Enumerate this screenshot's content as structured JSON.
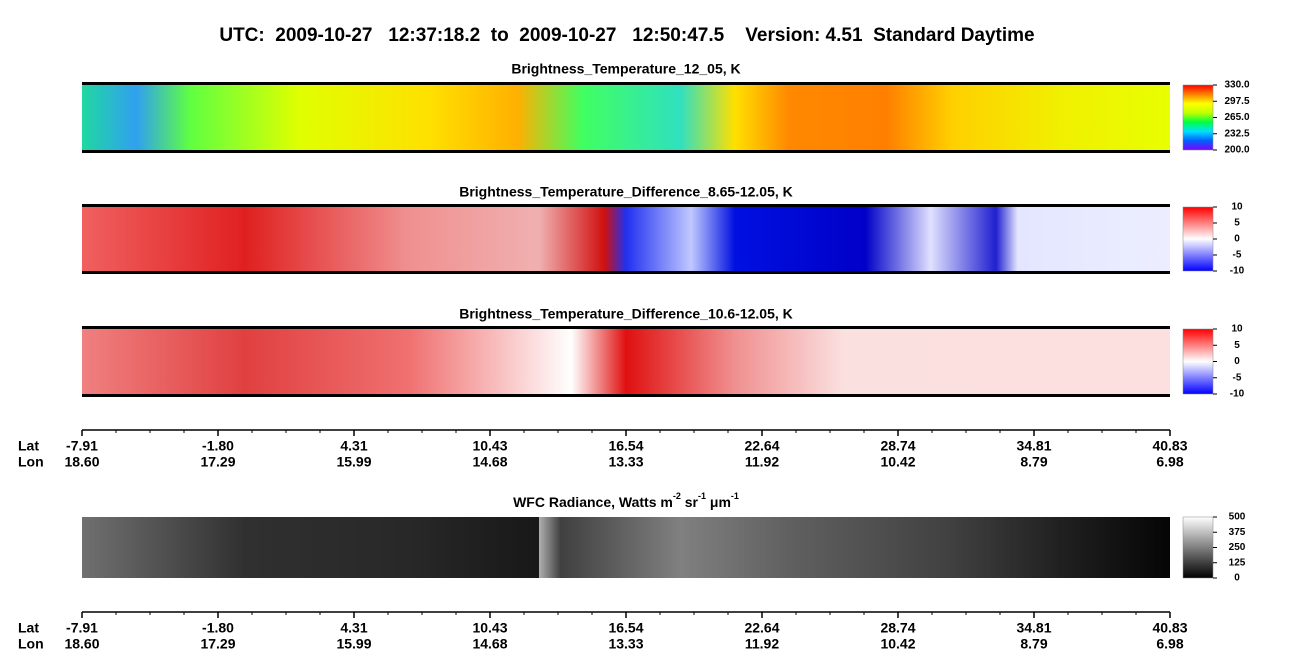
{
  "title": "UTC:  2009-10-27   12:37:18.2  to  2009-10-27   12:50:47.5    Version: 4.51  Standard Daytime",
  "chart_data": [
    {
      "type": "heatmap",
      "title": "Brightness_Temperature_12_05, K",
      "clim": [
        200,
        330
      ],
      "cticks": [
        {
          "value": 330,
          "label": "330.0"
        },
        {
          "value": 297.5,
          "label": "297.5"
        },
        {
          "value": 265,
          "label": "265.0"
        },
        {
          "value": 232.5,
          "label": "232.5"
        },
        {
          "value": 200,
          "label": "200.0"
        }
      ],
      "colormap": [
        "#8000ff",
        "#0060ff",
        "#00e0ff",
        "#00ff40",
        "#c0ff00",
        "#ffff00",
        "#ff8000",
        "#ff0000"
      ]
    },
    {
      "type": "heatmap",
      "title": "Brightness_Temperature_Difference_8.65-12.05, K",
      "clim": [
        -10,
        10
      ],
      "cticks": [
        10,
        5,
        0,
        -5,
        -10
      ],
      "colormap": [
        "#0000ff",
        "#ffffff",
        "#ff0000"
      ]
    },
    {
      "type": "heatmap",
      "title": "Brightness_Temperature_Difference_10.6-12.05, K",
      "clim": [
        -10,
        10
      ],
      "cticks": [
        10,
        5,
        0,
        -5,
        -10
      ],
      "colormap": [
        "#0000ff",
        "#ffffff",
        "#ff0000"
      ]
    },
    {
      "type": "heatmap",
      "title": [
        "WFC Radiance, Watts m",
        "-2",
        " sr",
        "-1",
        " μm",
        "-1"
      ],
      "clim": [
        0,
        500
      ],
      "cticks": [
        500,
        375,
        250,
        125,
        0
      ],
      "colormap": [
        "#000000",
        "#ffffff"
      ]
    }
  ],
  "position_axes": [
    {
      "names": [
        "Lat",
        "Lon"
      ],
      "lat": [
        "-7.91",
        "-1.80",
        "4.31",
        "10.43",
        "16.54",
        "22.64",
        "28.74",
        "34.81",
        "40.83"
      ],
      "lon": [
        "18.60",
        "17.29",
        "15.99",
        "14.68",
        "13.33",
        "11.92",
        "10.42",
        "8.79",
        "6.98"
      ]
    },
    {
      "names": [
        "Lat",
        "Lon"
      ],
      "lat": [
        "-7.91",
        "-1.80",
        "4.31",
        "10.43",
        "16.54",
        "22.64",
        "28.74",
        "34.81",
        "40.83"
      ],
      "lon": [
        "18.60",
        "17.29",
        "15.99",
        "14.68",
        "13.33",
        "11.92",
        "10.42",
        "8.79",
        "6.98"
      ]
    }
  ]
}
